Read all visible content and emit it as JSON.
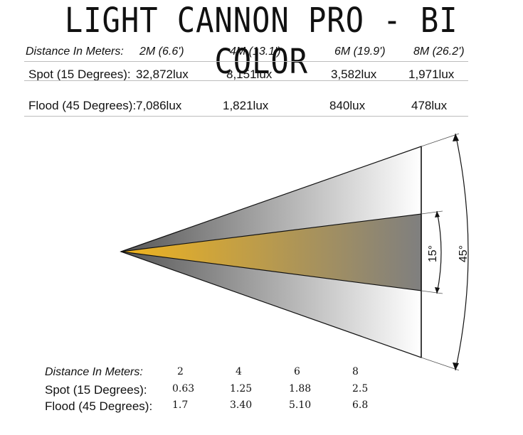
{
  "title": "LIGHT CANNON PRO - BI COLOR",
  "top_table": {
    "header_label": "Distance In Meters:",
    "distances": [
      "2M (6.6')",
      "4M (13.1')",
      "6M (19.9')",
      "8M (26.2')"
    ],
    "rows": [
      {
        "label": "Spot (15 Degrees):",
        "values": [
          "32,872lux",
          "8,151lux",
          "3,582lux",
          "1,971lux"
        ]
      },
      {
        "label": "Flood (45 Degrees):",
        "values": [
          "7,086lux",
          "1,821lux",
          "840lux",
          "478lux"
        ]
      }
    ]
  },
  "diagram": {
    "spot_angle_label": "15°",
    "flood_angle_label": "45°",
    "colors": {
      "spot_start": "#f0b41e",
      "spot_end": "#7f7f7f",
      "flood_start": "#555555",
      "flood_end": "#ffffff"
    }
  },
  "bottom_table": {
    "header_label": "Distance In Meters:",
    "distances": [
      "2",
      "4",
      "6",
      "8"
    ],
    "rows": [
      {
        "label": "Spot (15 Degrees):",
        "values": [
          "0.63",
          "1.25",
          "1.88",
          "2.5"
        ]
      },
      {
        "label": "Flood (45 Degrees):",
        "values": [
          "1.7",
          "3.40",
          "5.10",
          "6.8"
        ]
      }
    ]
  }
}
